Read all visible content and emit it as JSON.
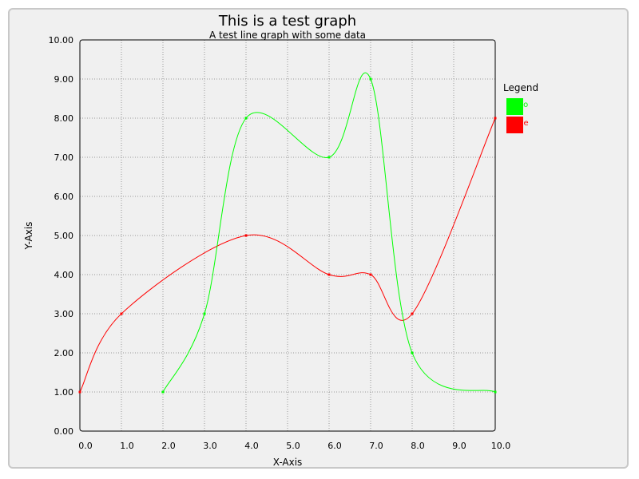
{
  "chart_data": {
    "type": "line",
    "title": "This is a test graph",
    "subtitle": "A test line graph with some data",
    "xlabel": "X-Axis",
    "ylabel": "Y-Axis",
    "xlim": [
      0,
      10
    ],
    "ylim": [
      0,
      10
    ],
    "x_ticks": [
      0,
      1,
      2,
      3,
      4,
      5,
      6,
      7,
      8,
      9,
      10
    ],
    "y_ticks": [
      0,
      1,
      2,
      3,
      4,
      5,
      6,
      7,
      8,
      9,
      10
    ],
    "x_tick_labels": [
      "0.0",
      "1.0",
      "2.0",
      "3.0",
      "4.0",
      "5.0",
      "6.0",
      "7.0",
      "8.0",
      "9.0",
      "10.0"
    ],
    "y_tick_labels": [
      "0.00",
      "1.00",
      "2.00",
      "3.00",
      "4.00",
      "5.00",
      "6.00",
      "7.00",
      "8.00",
      "9.00",
      "10.00"
    ],
    "grid": true,
    "smooth": true,
    "legend": {
      "title": "Legend",
      "placement": "right",
      "entries": [
        {
          "name": "two",
          "color": "#00ff00"
        },
        {
          "name": "one",
          "color": "#ff0000"
        }
      ]
    },
    "series": [
      {
        "name": "one",
        "color": "#ff0000",
        "points": [
          [
            0,
            1
          ],
          [
            1,
            3
          ],
          [
            4,
            5
          ],
          [
            6,
            4
          ],
          [
            7,
            4
          ],
          [
            8,
            3
          ],
          [
            10,
            8
          ]
        ]
      },
      {
        "name": "two",
        "color": "#00ff00",
        "points": [
          [
            2,
            1
          ],
          [
            3,
            3
          ],
          [
            4,
            8
          ],
          [
            6,
            7
          ],
          [
            7,
            9
          ],
          [
            8,
            2
          ],
          [
            10,
            1
          ]
        ]
      }
    ]
  }
}
